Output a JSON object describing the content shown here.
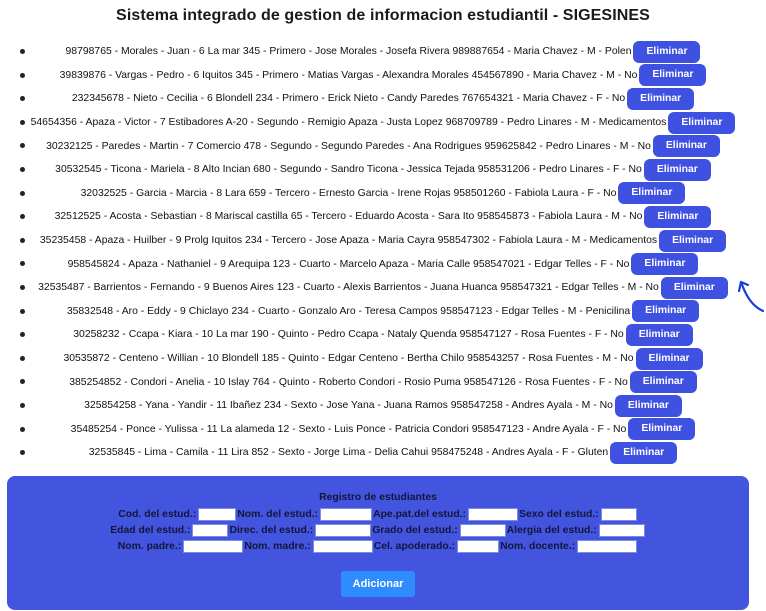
{
  "title": "Sistema integrado de gestion de informacion estudiantil - SIGESINES",
  "delete_label": "Eliminar",
  "students": [
    "98798765 - Morales - Juan - 6 La mar 345 - Primero - Jose Morales - Josefa Rivera 989887654 - Maria Chavez - M - Polen",
    "39839876 - Vargas - Pedro - 6 Iquitos 345 - Primero - Matias Vargas - Alexandra Morales 454567890 - Maria Chavez - M - No",
    "232345678 - Nieto - Cecilia - 6 Blondell 234 - Primero - Erick Nieto - Candy Paredes 767654321 - Maria Chavez - F - No",
    "54654356 - Apaza - Victor - 7 Estibadores A-20 - Segundo - Remigio Apaza - Justa Lopez 968709789 - Pedro Linares - M - Medicamentos",
    "30232125 - Paredes - Martin - 7 Comercio 478 - Segundo - Segundo Paredes - Ana Rodrigues 959625842 - Pedro Linares - M - No",
    "30532545 - Ticona - Mariela - 8 Alto Incian 680 - Segundo - Sandro Ticona - Jessica Tejada 958531206 - Pedro Linares - F - No",
    "32032525 - Garcia - Marcia - 8 Lara 659 - Tercero - Ernesto Garcia - Irene Rojas 958501260 - Fabiola Laura - F - No",
    "32512525 - Acosta - Sebastian - 8 Mariscal castilla 65 - Tercero - Eduardo Acosta - Sara Ito 958545873 - Fabiola Laura - M - No",
    "35235458 - Apaza - Huilber - 9 Prolg Iquitos 234 - Tercero - Jose Apaza - Maria Cayra 958547302 - Fabiola Laura - M - Medicamentos",
    "958545824 - Apaza - Nathaniel - 9 Arequipa 123 - Cuarto - Marcelo Apaza - Maria Calle 958547021 - Edgar Telles - F - No",
    "32535487 - Barrientos - Fernando - 9 Buenos Aires 123 - Cuarto - Alexis Barrientos - Juana Huanca 958547321 - Edgar Telles - M - No",
    "35832548 - Aro - Eddy - 9 Chiclayo 234 - Cuarto - Gonzalo Aro - Teresa Campos 958547123 - Edgar Telles - M - Penicilina",
    "30258232 - Ccapa - Kiara - 10 La mar 190 - Quinto - Pedro Ccapa - Nataly Quenda 958547127 - Rosa Fuentes - F - No",
    "30535872 - Centeno - Willian - 10 Blondell 185 - Quinto - Edgar Centeno - Bertha Chilo 958543257 - Rosa Fuentes - M - No",
    "385254852 - Condori - Anelia - 10 Islay 764 - Quinto - Roberto Condori - Rosio Puma 958547126 - Rosa Fuentes - F - No",
    "325854258 - Yana - Yandir - 11 Ibañez 234 - Sexto - Jose Yana - Juana Ramos 958547258 - Andres Ayala - M - No",
    "35485254 - Ponce - Yulissa - 11 La alameda 12 - Sexto - Luis Ponce - Patricia Condori 958547123 - Andre Ayala - F - No",
    "32535845 - Lima - Camila - 11 Lira 852 - Sexto - Jorge Lima - Delia Cahui 958475248 - Andres Ayala - F - Gluten"
  ],
  "form": {
    "title": "Registro de estudiantes",
    "cod": "Cod. del estud.:",
    "nom": "Nom. del estud.:",
    "apepat": "Ape.pat.del estud.:",
    "sexo": "Sexo del estud.:",
    "edad": "Edad del estud.:",
    "direc": "Direc. del estud.:",
    "grado": "Grado del estud.:",
    "alergia": "Alergia del estud.:",
    "nompadre": "Nom. padre.:",
    "nommadre": "Nom. madre.:",
    "celapo": "Cel. apoderado.:",
    "nomdoc": "Nom. docente.:",
    "add_label": "Adicionar"
  },
  "colors": {
    "accent": "#4355df",
    "button": "#3f51e0",
    "add_button": "#2f8cff"
  },
  "annotation_icon": "hand-drawn-arrow-icon"
}
